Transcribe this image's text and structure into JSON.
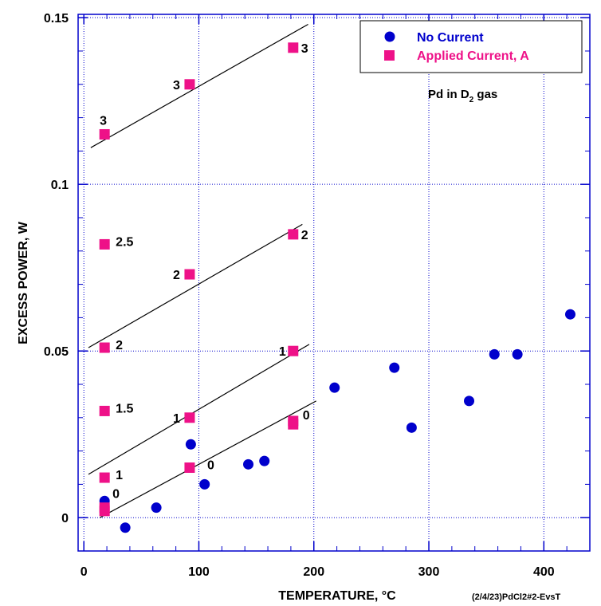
{
  "chart_data": {
    "type": "scatter",
    "xlabel": "TEMPERATURE, °C",
    "ylabel": "EXCESS POWER, W",
    "xlim": [
      -5,
      440
    ],
    "ylim": [
      -0.01,
      0.151
    ],
    "x_ticks": [
      0,
      100,
      200,
      300,
      400
    ],
    "y_ticks": [
      0,
      0.05,
      0.1,
      0.15
    ],
    "x_tick_labels": [
      "0",
      "100",
      "200",
      "300",
      "400"
    ],
    "y_tick_labels": [
      "0",
      "0.05",
      "0.1",
      "0.15"
    ],
    "grid": true,
    "legend_position": "top-right",
    "annotation": {
      "main": "Pd in D",
      "subscript": "2",
      "suffix": " gas"
    },
    "footer_text": "(2/4/23)PdCl2#2-EvsT",
    "series": [
      {
        "name": "No Current",
        "marker": "circle",
        "color": "#0000cc",
        "points": [
          {
            "x": 18,
            "y": 0.005
          },
          {
            "x": 36,
            "y": -0.003
          },
          {
            "x": 63,
            "y": 0.003
          },
          {
            "x": 93,
            "y": 0.022
          },
          {
            "x": 105,
            "y": 0.01
          },
          {
            "x": 143,
            "y": 0.016
          },
          {
            "x": 157,
            "y": 0.017
          },
          {
            "x": 218,
            "y": 0.039
          },
          {
            "x": 270,
            "y": 0.045
          },
          {
            "x": 285,
            "y": 0.027
          },
          {
            "x": 335,
            "y": 0.035
          },
          {
            "x": 357,
            "y": 0.049
          },
          {
            "x": 377,
            "y": 0.049
          },
          {
            "x": 423,
            "y": 0.061
          }
        ]
      },
      {
        "name": "Applied Current, A",
        "marker": "square",
        "color": "#ee1188",
        "points": [
          {
            "x": 18,
            "y": 0.003,
            "label": "0"
          },
          {
            "x": 18,
            "y": 0.002
          },
          {
            "x": 18,
            "y": 0.012,
            "label": "1"
          },
          {
            "x": 18,
            "y": 0.032,
            "label": "1.5"
          },
          {
            "x": 18,
            "y": 0.051,
            "label": "2"
          },
          {
            "x": 18,
            "y": 0.082,
            "label": "2.5"
          },
          {
            "x": 18,
            "y": 0.115,
            "label": "3"
          },
          {
            "x": 92,
            "y": 0.015,
            "label": "0"
          },
          {
            "x": 92,
            "y": 0.03,
            "label": "1"
          },
          {
            "x": 92,
            "y": 0.073,
            "label": "2"
          },
          {
            "x": 92,
            "y": 0.13,
            "label": "3"
          },
          {
            "x": 182,
            "y": 0.028,
            "label": "0"
          },
          {
            "x": 182,
            "y": 0.029
          },
          {
            "x": 182,
            "y": 0.05,
            "label": "1"
          },
          {
            "x": 182,
            "y": 0.085,
            "label": "2"
          },
          {
            "x": 182,
            "y": 0.141,
            "label": "3"
          }
        ]
      }
    ],
    "fit_lines": [
      {
        "x": [
          14,
          202
        ],
        "y": [
          0.0,
          0.035
        ]
      },
      {
        "x": [
          4,
          196
        ],
        "y": [
          0.013,
          0.052
        ]
      },
      {
        "x": [
          4,
          190
        ],
        "y": [
          0.051,
          0.088
        ]
      },
      {
        "x": [
          6,
          195
        ],
        "y": [
          0.111,
          0.148
        ]
      }
    ]
  }
}
